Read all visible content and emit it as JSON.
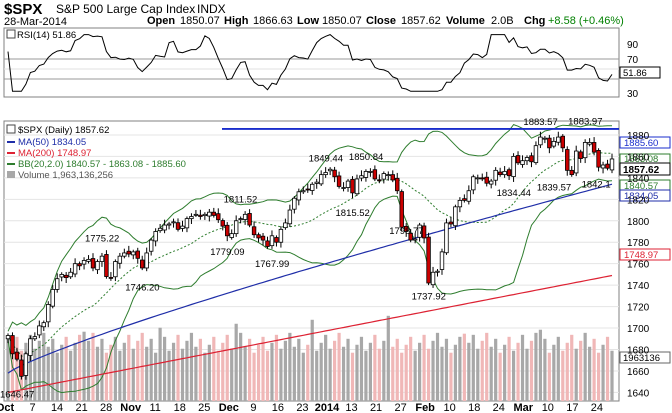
{
  "header": {
    "symbol": "$SPX",
    "name": "S&P 500 Large Cap Index",
    "exchange": "INDX",
    "date": "28-Mar-2014",
    "open_label": "Open",
    "open": "1850.07",
    "high_label": "High",
    "high": "1866.63",
    "low_label": "Low",
    "low": "1850.07",
    "close_label": "Close",
    "close": "1857.62",
    "volume_label": "Volume",
    "volume": "2.0B",
    "chg_label": "Chg",
    "chg": "+8.58 (+0.46%)"
  },
  "colors": {
    "bull": "#ffffff",
    "bear": "#cc0000",
    "ma50": "#1f2ea8",
    "ma200": "#dd2233",
    "bb": "#2e7d2e",
    "bbmid": "#2e7d2e",
    "vol_up": "#a8a8a8",
    "vol_down": "#f0b7b7",
    "resistance": "#1a2dcc",
    "rsi": "#000000"
  },
  "rsi_panel": {
    "legend": "RSI(14) 51.86",
    "value_tag": "51.86",
    "levels": [
      "90",
      "70",
      "50",
      "30"
    ]
  },
  "legend": {
    "main": "$SPX (Daily) 1857.62",
    "ma50": "MA(50) 1834.05",
    "ma200": "MA(200) 1748.97",
    "bb": "BB(20,2.0) 1840.57 - 1863.08 - 1885.60",
    "volume": "Volume 1,963,136,256"
  },
  "right_tags": {
    "resistance": "1885.60",
    "upper_ghost": "1863.08",
    "close": "1857.62",
    "bb_lower": "1840.57",
    "ma50": "1834.05",
    "ma200": "1748.97",
    "volume": "1963136"
  },
  "chart_data": {
    "type": "candlestick",
    "x_labels": [
      "Oct",
      "7",
      "14",
      "21",
      "28",
      "Nov",
      "11",
      "18",
      "25",
      "Dec",
      "9",
      "16",
      "23",
      "2014",
      "13",
      "21",
      "27",
      "Feb",
      "10",
      "18",
      "24",
      "Mar",
      "10",
      "17",
      "24"
    ],
    "y_ticks": [
      1640,
      1660,
      1680,
      1700,
      1720,
      1740,
      1760,
      1780,
      1800,
      1820,
      1840,
      1860,
      1880
    ],
    "ylim": [
      1632,
      1893
    ],
    "resistance": 1885.6,
    "annotations": [
      {
        "text": "1646.47",
        "index": 2,
        "price": 1646.47,
        "pos": "below"
      },
      {
        "text": "1746.20",
        "index": 30,
        "price": 1746.2,
        "pos": "below"
      },
      {
        "text": "1775.22",
        "index": 21,
        "price": 1775.22,
        "pos": "above"
      },
      {
        "text": "1811.52",
        "index": 52,
        "price": 1811.52,
        "pos": "above"
      },
      {
        "text": "1779.09",
        "index": 49,
        "price": 1779.09,
        "pos": "below"
      },
      {
        "text": "1767.99",
        "index": 59,
        "price": 1767.99,
        "pos": "below"
      },
      {
        "text": "1849.44",
        "index": 71,
        "price": 1849.44,
        "pos": "above"
      },
      {
        "text": "1850.84",
        "index": 80,
        "price": 1850.84,
        "pos": "above"
      },
      {
        "text": "1815.52",
        "index": 77,
        "price": 1815.52,
        "pos": "below"
      },
      {
        "text": "1798.77",
        "index": 89,
        "price": 1798.77,
        "pos": "below"
      },
      {
        "text": "1737.92",
        "index": 94,
        "price": 1737.92,
        "pos": "below"
      },
      {
        "text": "1834.44",
        "index": 113,
        "price": 1834.44,
        "pos": "below"
      },
      {
        "text": "1883.57",
        "index": 119,
        "price": 1883.57,
        "pos": "above"
      },
      {
        "text": "1883.97",
        "index": 129,
        "price": 1883.97,
        "pos": "above"
      },
      {
        "text": "1839.57",
        "index": 122,
        "price": 1839.57,
        "pos": "below"
      },
      {
        "text": "1842.1",
        "index": 132,
        "price": 1842.1,
        "pos": "below"
      }
    ],
    "closes": [
      1693,
      1676,
      1671,
      1655,
      1676,
      1690,
      1692,
      1702,
      1705,
      1722,
      1736,
      1746,
      1750,
      1747,
      1752,
      1760,
      1758,
      1763,
      1764,
      1756,
      1762,
      1767,
      1748,
      1747,
      1762,
      1767,
      1770,
      1769,
      1771,
      1765,
      1756,
      1770,
      1782,
      1790,
      1793,
      1796,
      1797,
      1799,
      1792,
      1795,
      1802,
      1804,
      1806,
      1804,
      1806,
      1808,
      1805,
      1801,
      1795,
      1786,
      1788,
      1800,
      1802,
      1806,
      1796,
      1787,
      1784,
      1782,
      1776,
      1786,
      1780,
      1792,
      1798,
      1810,
      1821,
      1827,
      1828,
      1829,
      1834,
      1836,
      1843,
      1845,
      1848,
      1841,
      1832,
      1831,
      1837,
      1826,
      1839,
      1842,
      1846,
      1846,
      1839,
      1838,
      1844,
      1843,
      1838,
      1828,
      1794,
      1790,
      1782,
      1783,
      1796,
      1784,
      1742,
      1752,
      1753,
      1771,
      1798,
      1797,
      1813,
      1819,
      1819,
      1828,
      1841,
      1840,
      1839,
      1835,
      1837,
      1847,
      1843,
      1846,
      1842,
      1860,
      1854,
      1856,
      1859,
      1855,
      1870,
      1878,
      1877,
      1868,
      1874,
      1878,
      1868,
      1847,
      1843,
      1865,
      1858,
      1873,
      1873,
      1864,
      1850,
      1852,
      1849,
      1857.62
    ],
    "volume_scale_max": 3000000000
  }
}
